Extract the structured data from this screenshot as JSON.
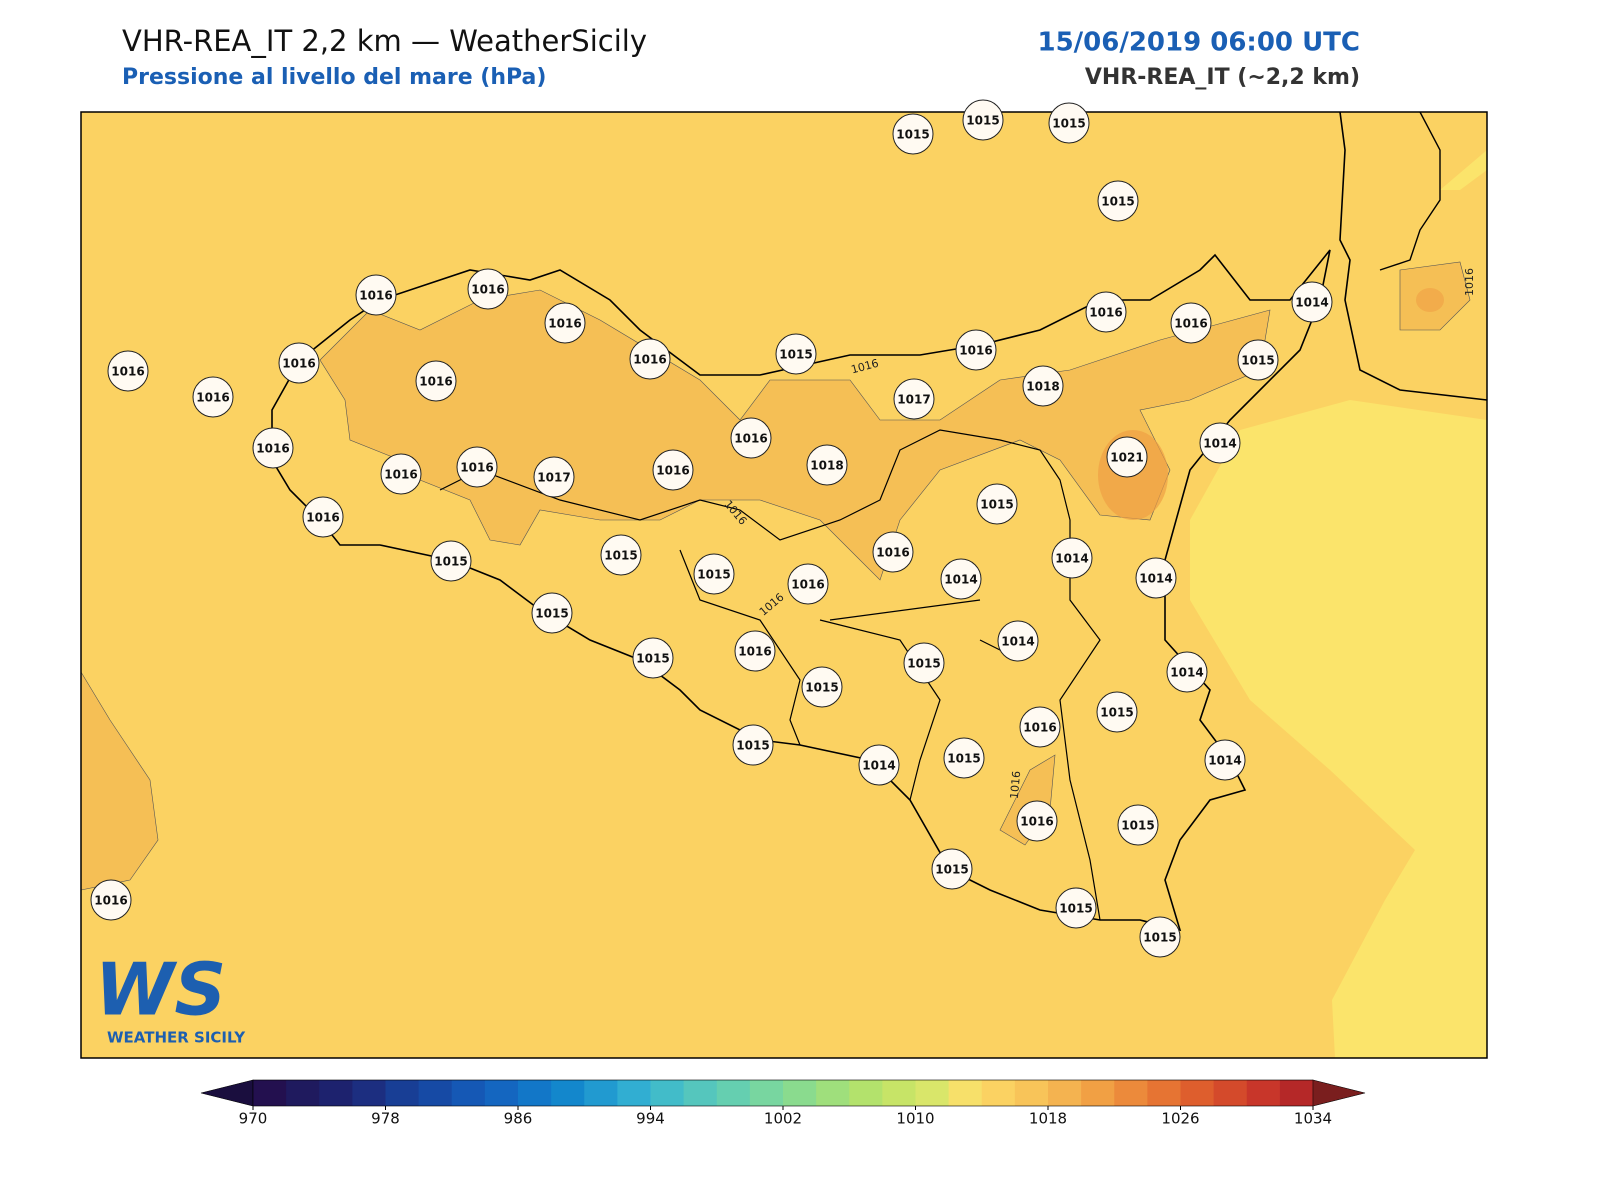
{
  "header": {
    "title": "VHR-REA_IT 2,2 km — WeatherSicily",
    "subtitle": "Pressione al livello del mare (hPa)",
    "datetime": "15/06/2019 06:00 UTC",
    "model": "VHR-REA_IT (~2,2 km)"
  },
  "map": {
    "stations": [
      1015,
      1015,
      1015,
      1015,
      1016,
      1016,
      1016,
      1016,
      1016,
      1016,
      1016,
      1016,
      1015,
      1016,
      1016,
      1016,
      1014,
      1015,
      1018,
      1017,
      1016,
      1018,
      1021,
      1014,
      1016,
      1016,
      1016,
      1017,
      1016,
      1015,
      1016,
      1015,
      1015,
      1015,
      1016,
      1016,
      1014,
      1014,
      1014,
      1015,
      1015,
      1016,
      1015,
      1015,
      1014,
      1014,
      1015,
      1016,
      1015,
      1014,
      1015,
      1014,
      1016,
      1015,
      1015,
      1015,
      1015,
      1016
    ],
    "contour_labels": [
      1016,
      1016,
      1016,
      1016,
      1016
    ]
  },
  "colorbar": {
    "lim": [
      970,
      1034
    ],
    "ticks": [
      970,
      978,
      986,
      994,
      1002,
      1010,
      1018,
      1026,
      1034
    ],
    "colors": [
      "#23104f",
      "#1f1a5e",
      "#1d226e",
      "#1c2e80",
      "#183e95",
      "#164aa5",
      "#1558b5",
      "#1466c0",
      "#1277c8",
      "#1387cc",
      "#219ad0",
      "#31aed2",
      "#42bcc9",
      "#55c6bd",
      "#65cfb0",
      "#78d6a0",
      "#8adb8e",
      "#9fdf7c",
      "#b3e26c",
      "#c7e467",
      "#d9e66a",
      "#f7e06a",
      "#fbd262",
      "#f8c459",
      "#f4b350",
      "#f1a044",
      "#ec8a3b",
      "#e67433",
      "#de5e2d",
      "#d44a2b",
      "#c8362a",
      "#b52828"
    ],
    "under": "#1a0e3e",
    "over": "#7a1e1e"
  },
  "logo": {
    "mark": "WS",
    "name": "WEATHER SICILY"
  }
}
